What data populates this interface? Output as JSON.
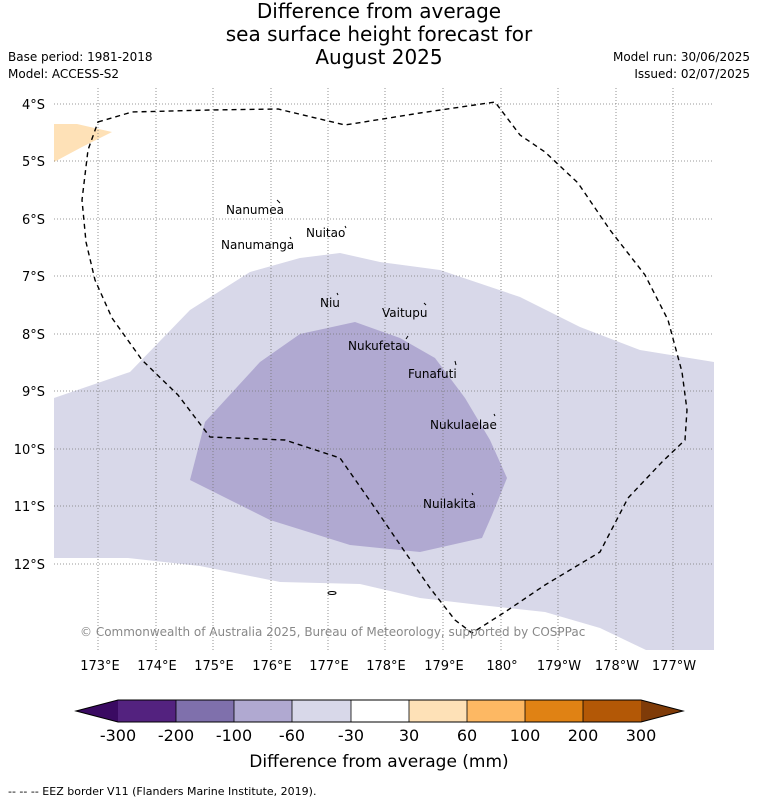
{
  "title": {
    "line1": "Difference from average",
    "line2": "sea surface height forecast for",
    "line3": "August 2025"
  },
  "meta": {
    "base_period": "Base period: 1981-2018",
    "model": "Model: ACCESS-S2",
    "model_run": "Model run: 30/06/2025",
    "issued": "Issued: 02/07/2025"
  },
  "map": {
    "lat_labels": [
      "4°S",
      "5°S",
      "6°S",
      "7°S",
      "8°S",
      "9°S",
      "10°S",
      "11°S",
      "12°S"
    ],
    "lon_labels": [
      "173°E",
      "174°E",
      "175°E",
      "176°E",
      "177°E",
      "178°E",
      "179°E",
      "180°",
      "179°W",
      "178°W",
      "177°W"
    ],
    "places": [
      "Nanumea",
      "Nuitao",
      "Nanumanga",
      "Niu",
      "Vaitupu",
      "Nukufetau",
      "Funafuti",
      "Nukulaelae",
      "Nuilakita"
    ],
    "copyright": "© Commonwealth of Australia 2025, Bureau of Meteorology, supported by COSPPac",
    "colors": {
      "light_purple": "#d8d8e9",
      "medium_purple": "#b0a9d1",
      "pale_orange": "#fee1b7",
      "grid": "#777777",
      "eez": "#000000"
    }
  },
  "colorbar": {
    "ticks": [
      "-300",
      "-200",
      "-100",
      "-60",
      "-30",
      "30",
      "60",
      "100",
      "200",
      "300"
    ],
    "colors": [
      "#3a0a62",
      "#53227f",
      "#7f70ac",
      "#b0a9d1",
      "#d8d8e9",
      "#ffffff",
      "#fee1b7",
      "#fdb863",
      "#e08214",
      "#b35806",
      "#7f3b08"
    ],
    "label": "Difference from average (mm)"
  },
  "footnote": "--  --  -- EEZ border V11 (Flanders Marine Institute, 2019)."
}
